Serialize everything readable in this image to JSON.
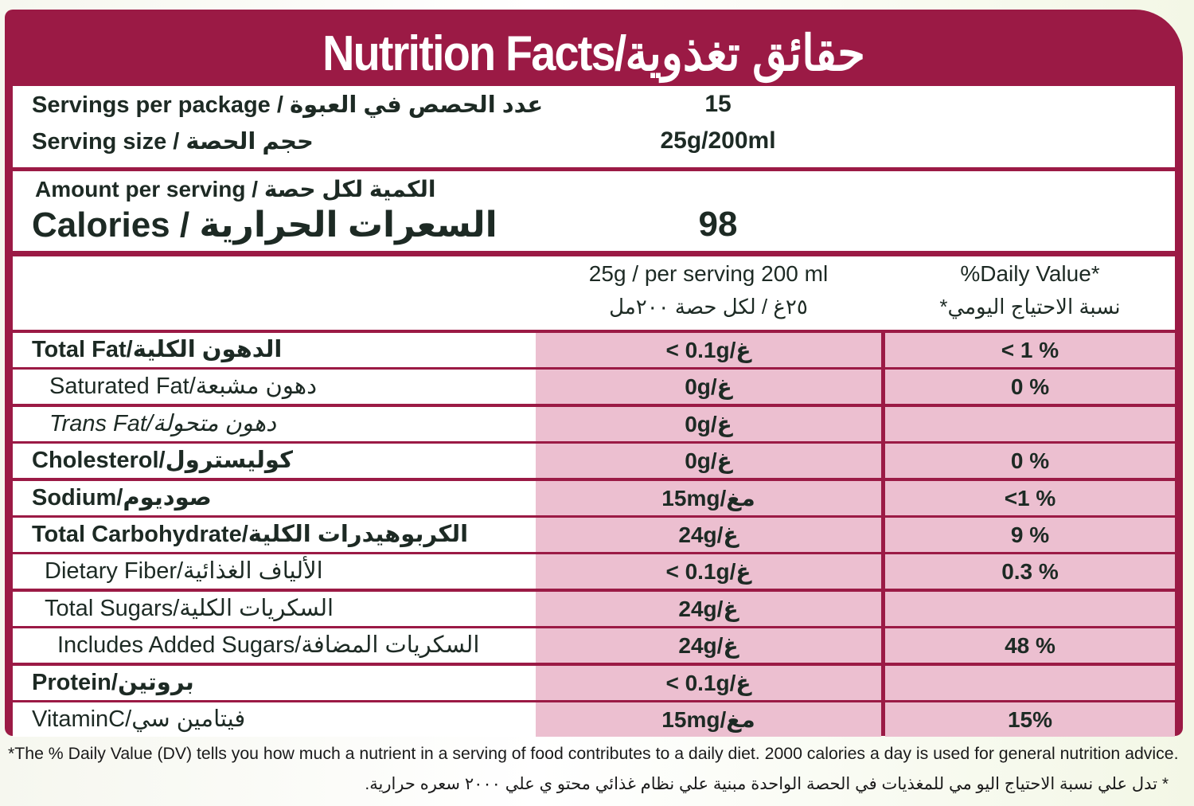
{
  "title": "Nutrition Facts/حقائق تغذوية",
  "servings": {
    "per_package_label": "Servings per package / عدد الحصص في العبوة",
    "per_package_value": "15",
    "size_label": "Serving size / حجم الحصة",
    "size_value": "25g/200ml"
  },
  "calories": {
    "amount_label": "Amount per serving / الكمية لكل حصة",
    "label": "Calories / السعرات الحرارية",
    "value": "98"
  },
  "columns": {
    "amount_en": "25g / per serving 200 ml",
    "amount_ar": "٢٥غ / لكل حصة ٢٠٠مل",
    "dv_en": "%Daily Value*",
    "dv_ar": "*نسبة الاحتياج اليومي"
  },
  "rows": [
    {
      "name": "Total Fat/الدهون الكلية",
      "amount": "< 0.1g/غ",
      "dv": "< 1 %"
    },
    {
      "name": "Saturated Fat/دهون مشبعة",
      "amount": "0g/غ",
      "dv": "0 %"
    },
    {
      "name": "Trans Fat/دهون متحولة",
      "amount": "0g/غ",
      "dv": ""
    },
    {
      "name": "Cholesterol/كوليسترول",
      "amount": "0g/غ",
      "dv": "0 %"
    },
    {
      "name": "Sodium/صوديوم",
      "amount": "15mg/مغ",
      "dv": "<1 %"
    },
    {
      "name": "Total Carbohydrate/الكربوهيدرات الكلية",
      "amount": "24g/غ",
      "dv": "9 %"
    },
    {
      "name": "Dietary Fiber/الألياف الغذائية",
      "amount": "< 0.1g/غ",
      "dv": "0.3 %"
    },
    {
      "name": "Total Sugars/السكريات الكلية",
      "amount": "24g/غ",
      "dv": ""
    },
    {
      "name": "Includes Added Sugars/السكريات المضافة",
      "amount": "24g/غ",
      "dv": "48 %"
    },
    {
      "name": "Protein/بروتين",
      "amount": "< 0.1g/غ",
      "dv": ""
    },
    {
      "name": "VitaminC/فيتامين سي",
      "amount": "15mg/مغ",
      "dv": "15%"
    }
  ],
  "footnote_en": "*The % Daily Value (DV) tells you how much a nutrient in a serving of food contributes to a daily diet. 2000 calories a day is used for general nutrition advice.",
  "footnote_ar": "* تدل علي نسبة الاحتياج اليو مي للمغذيات في الحصة الواحدة مبنية علي نظام غذائي محتو ي علي ٢٠٠٠ سعره حرارية."
}
